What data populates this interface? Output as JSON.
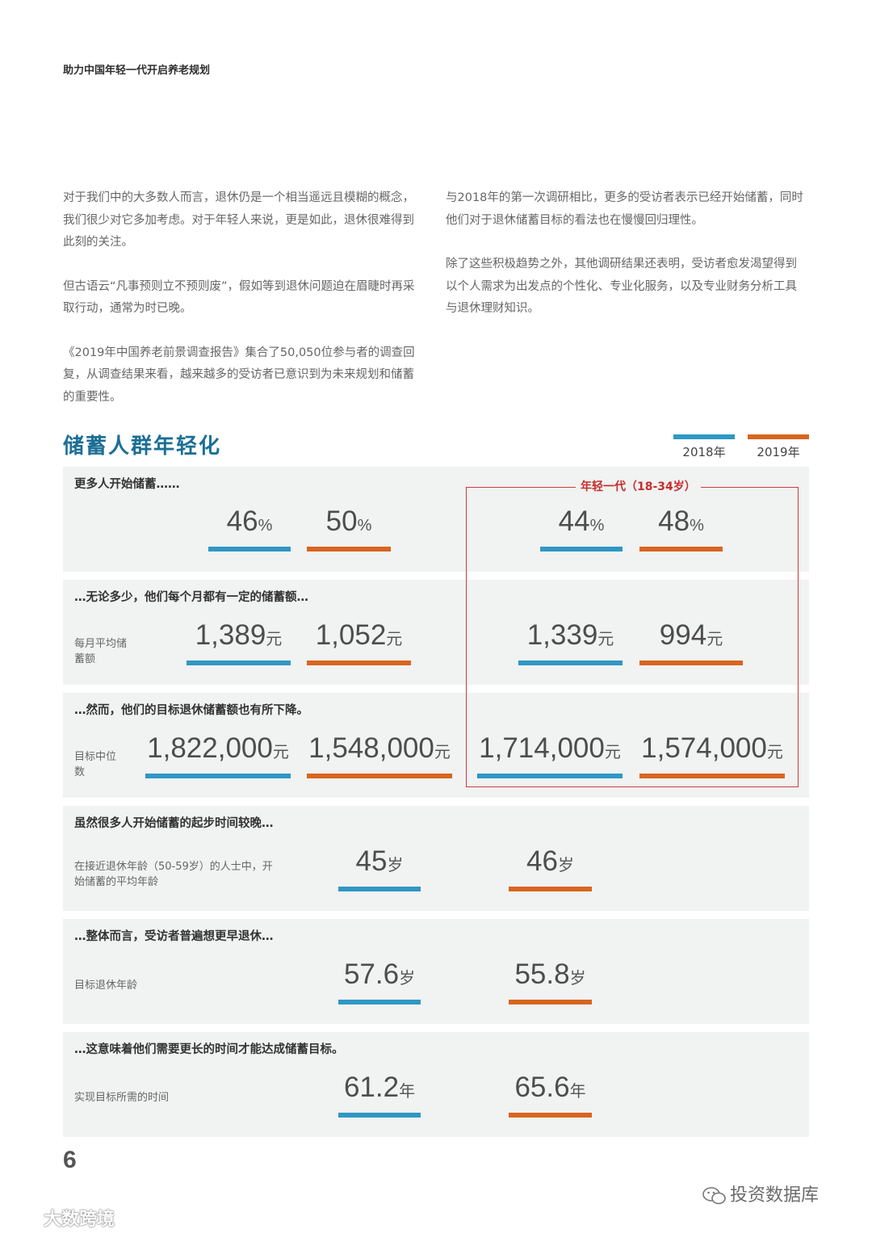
{
  "header": {
    "title": "助力中国年轻一代开启养老规划"
  },
  "left_paragraphs": [
    "对于我们中的大多数人而言，退休仍是一个相当遥远且模糊的概念，我们很少对它多加考虑。对于年轻人来说，更是如此，退休很难得到此刻的关注。",
    "但古语云“凡事预则立不预则废”，假如等到退休问题迫在眉睫时再采取行动，通常为时已晚。",
    "《2019年中国养老前景调查报告》集合了50,050位参与者的调查回复，从调查结果来看，越来越多的受访者已意识到为未来规划和储蓄的重要性。"
  ],
  "right_paragraphs": [
    "与2018年的第一次调研相比，更多的受访者表示已经开始储蓄，同时他们对于退休储蓄目标的看法也在慢慢回归理性。",
    "除了这些积极趋势之外，其他调研结果还表明，受访者愈发渴望得到以个人需求为出发点的个性化、专业化服务，以及专业财务分析工具与退休理财知识。"
  ],
  "section": {
    "title": "储蓄人群年轻化"
  },
  "legend": {
    "y2018": "2018年",
    "y2019": "2019年",
    "color_2018": "#2f97c4",
    "color_2019": "#d8651f"
  },
  "young_label": "年轻一代（18-34岁）",
  "rows": [
    {
      "heading": "更多人开始储蓄……",
      "label": "",
      "all_2018": "46",
      "all_2019": "50",
      "young_2018": "44",
      "young_2019": "48",
      "unit": "%"
    },
    {
      "heading": "…无论多少，他们每个月都有一定的储蓄额…",
      "label": "每月平均储蓄额",
      "all_2018": "1,389",
      "all_2019": "1,052",
      "young_2018": "1,339",
      "young_2019": "994",
      "unit": "元"
    },
    {
      "heading": "…然而，他们的目标退休储蓄额也有所下降。",
      "label": "目标中位数",
      "all_2018": "1,822,000",
      "all_2019": "1,548,000",
      "young_2018": "1,714,000",
      "young_2019": "1,574,000",
      "unit": "元"
    },
    {
      "heading": "虽然很多人开始储蓄的起步时间较晚…",
      "label": "在接近退休年龄（50-59岁）的人士中，开始储蓄的平均年龄",
      "all_2018": "45",
      "all_2019": "46",
      "unit": "岁"
    },
    {
      "heading": "…整体而言，受访者普遍想更早退休…",
      "label": "目标退休年龄",
      "all_2018": "57.6",
      "all_2019": "55.8",
      "unit": "岁"
    },
    {
      "heading": "…这意味着他们需要更长的时间才能达成储蓄目标。",
      "label": "实现目标所需的时间",
      "all_2018": "61.2",
      "all_2019": "65.6",
      "unit": "年"
    }
  ],
  "page_number": "6",
  "watermark_right": "投资数据库",
  "watermark_left": "大数跨境"
}
